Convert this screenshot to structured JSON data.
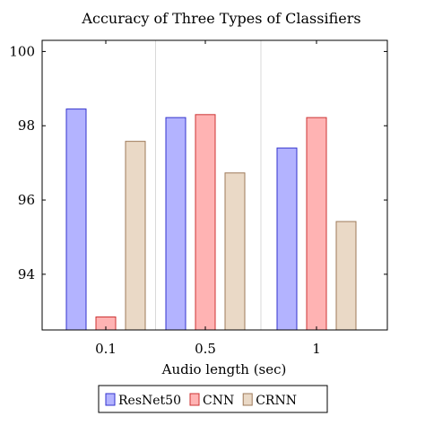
{
  "chart_data": {
    "type": "bar",
    "title": "Accuracy of Three Types of Classifiers",
    "xlabel": "Audio length (sec)",
    "ylabel": "",
    "categories": [
      "0.1",
      "0.5",
      "1"
    ],
    "ylim": [
      92.5,
      100.3
    ],
    "yticks": [
      "94",
      "96",
      "98",
      "100"
    ],
    "grid": "vertical",
    "legend_position": "bottom",
    "series": [
      {
        "name": "ResNet50",
        "values": [
          98.45,
          98.22,
          97.4
        ],
        "fill": "#b3b3ff",
        "stroke": "#3333cc"
      },
      {
        "name": "CNN",
        "values": [
          92.85,
          98.3,
          98.22
        ],
        "fill": "#ffb3b3",
        "stroke": "#cc3333"
      },
      {
        "name": "CRNN",
        "values": [
          97.58,
          96.73,
          95.42
        ],
        "fill": "#ead9c6",
        "stroke": "#9e7a5a"
      }
    ]
  }
}
